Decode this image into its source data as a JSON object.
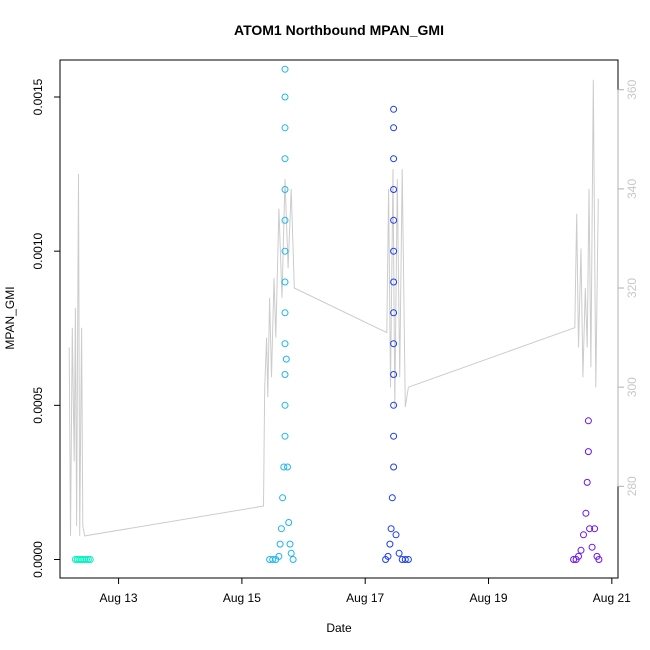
{
  "chart_data": {
    "type": "scatter",
    "title": "ATOM1 Northbound MPAN_GMI",
    "xlabel": "Date",
    "ylabel": "MPAN_GMI",
    "xlim": [
      12.05,
      21.1
    ],
    "ylim": [
      -6e-05,
      0.00162
    ],
    "y2lim": [
      261.5,
      366
    ],
    "x_ticks": [
      13,
      15,
      17,
      19,
      21
    ],
    "x_tick_labels": [
      "Aug 13",
      "Aug 15",
      "Aug 17",
      "Aug 19",
      "Aug 21"
    ],
    "y_ticks": [
      0.0,
      0.0005,
      0.001,
      0.0015
    ],
    "y_tick_labels": [
      "0.0000",
      "0.0005",
      "0.0010",
      "0.0015"
    ],
    "y2_ticks": [
      280,
      300,
      320,
      340,
      360
    ],
    "y2_tick_labels": [
      "280",
      "300",
      "320",
      "340",
      "360"
    ],
    "grid": false,
    "series": [
      {
        "color": "#00f5c0",
        "x_range": [
          12.3,
          12.55
        ],
        "points": [
          [
            12.3,
            0.0
          ],
          [
            12.33,
            0.0
          ],
          [
            12.36,
            0.0
          ],
          [
            12.39,
            0.0
          ],
          [
            12.42,
            0.0
          ],
          [
            12.45,
            0.0
          ],
          [
            12.48,
            0.0
          ],
          [
            12.51,
            0.0
          ],
          [
            12.54,
            0.0
          ]
        ]
      },
      {
        "color": "#1eb4f0",
        "x_range": [
          15.4,
          15.85
        ],
        "points": [
          [
            15.45,
            0.0
          ],
          [
            15.5,
            0.0
          ],
          [
            15.55,
            0.0
          ],
          [
            15.6,
            1e-05
          ],
          [
            15.62,
            5e-05
          ],
          [
            15.64,
            0.0001
          ],
          [
            15.66,
            0.0002
          ],
          [
            15.68,
            0.0003
          ],
          [
            15.7,
            0.0004
          ],
          [
            15.7,
            0.0005
          ],
          [
            15.7,
            0.0006
          ],
          [
            15.7,
            0.0007
          ],
          [
            15.7,
            0.0008
          ],
          [
            15.7,
            0.0009
          ],
          [
            15.7,
            0.001
          ],
          [
            15.7,
            0.0011
          ],
          [
            15.7,
            0.0012
          ],
          [
            15.7,
            0.0013
          ],
          [
            15.7,
            0.0014
          ],
          [
            15.7,
            0.0015
          ],
          [
            15.7,
            0.00159
          ],
          [
            15.72,
            0.00065
          ],
          [
            15.74,
            0.0003
          ],
          [
            15.76,
            0.00012
          ],
          [
            15.78,
            5e-05
          ],
          [
            15.8,
            2e-05
          ],
          [
            15.83,
            0.0
          ]
        ]
      },
      {
        "color": "#1a3cf0",
        "x_range": [
          17.3,
          17.75
        ],
        "points": [
          [
            17.33,
            0.0
          ],
          [
            17.37,
            1e-05
          ],
          [
            17.4,
            5e-05
          ],
          [
            17.42,
            0.0001
          ],
          [
            17.44,
            0.0002
          ],
          [
            17.46,
            0.0003
          ],
          [
            17.46,
            0.0004
          ],
          [
            17.46,
            0.0005
          ],
          [
            17.46,
            0.0006
          ],
          [
            17.46,
            0.0007
          ],
          [
            17.46,
            0.0008
          ],
          [
            17.46,
            0.0009
          ],
          [
            17.46,
            0.001
          ],
          [
            17.46,
            0.0011
          ],
          [
            17.46,
            0.0012
          ],
          [
            17.46,
            0.0013
          ],
          [
            17.46,
            0.0014
          ],
          [
            17.46,
            0.00146
          ],
          [
            17.5,
            8e-05
          ],
          [
            17.55,
            2e-05
          ],
          [
            17.6,
            0.0
          ],
          [
            17.65,
            0.0
          ],
          [
            17.7,
            0.0
          ]
        ]
      },
      {
        "color": "#6a14f0",
        "x_range": [
          20.35,
          20.8
        ],
        "points": [
          [
            20.38,
            0.0
          ],
          [
            20.42,
            0.0
          ],
          [
            20.46,
            1e-05
          ],
          [
            20.5,
            3e-05
          ],
          [
            20.54,
            8e-05
          ],
          [
            20.58,
            0.00015
          ],
          [
            20.6,
            0.00025
          ],
          [
            20.62,
            0.00035
          ],
          [
            20.62,
            0.00045
          ],
          [
            20.64,
            0.0001
          ],
          [
            20.68,
            4e-05
          ],
          [
            20.72,
            0.0001
          ],
          [
            20.76,
            1e-05
          ],
          [
            20.79,
            0.0
          ]
        ]
      }
    ],
    "secondary_line": {
      "color": "#cccccc",
      "points": [
        [
          12.2,
          308
        ],
        [
          12.22,
          270
        ],
        [
          12.25,
          312
        ],
        [
          12.28,
          285
        ],
        [
          12.3,
          316
        ],
        [
          12.32,
          272
        ],
        [
          12.35,
          343
        ],
        [
          12.37,
          270
        ],
        [
          12.4,
          312
        ],
        [
          12.42,
          272
        ],
        [
          12.45,
          270
        ],
        [
          15.35,
          276
        ],
        [
          15.37,
          300
        ],
        [
          15.4,
          310
        ],
        [
          15.42,
          298
        ],
        [
          15.45,
          318
        ],
        [
          15.48,
          302
        ],
        [
          15.52,
          322
        ],
        [
          15.55,
          310
        ],
        [
          15.6,
          336
        ],
        [
          15.65,
          318
        ],
        [
          15.7,
          342
        ],
        [
          15.75,
          324
        ],
        [
          15.8,
          340
        ],
        [
          15.85,
          320
        ],
        [
          17.35,
          311
        ],
        [
          17.38,
          340
        ],
        [
          17.41,
          300
        ],
        [
          17.45,
          344
        ],
        [
          17.48,
          296
        ],
        [
          17.52,
          342
        ],
        [
          17.56,
          302
        ],
        [
          17.6,
          344
        ],
        [
          17.65,
          296
        ],
        [
          17.7,
          300
        ],
        [
          20.4,
          312
        ],
        [
          20.43,
          335
        ],
        [
          20.46,
          308
        ],
        [
          20.5,
          328
        ],
        [
          20.53,
          302
        ],
        [
          20.57,
          320
        ],
        [
          20.6,
          308
        ],
        [
          20.63,
          340
        ],
        [
          20.66,
          304
        ],
        [
          20.7,
          362
        ],
        [
          20.74,
          300
        ],
        [
          20.78,
          338
        ]
      ]
    }
  }
}
